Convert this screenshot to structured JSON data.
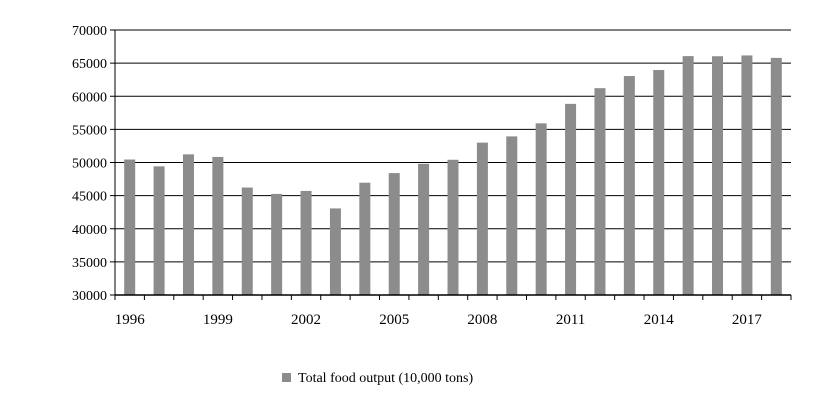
{
  "chart_data": {
    "type": "bar",
    "categories": [
      "1996",
      "1997",
      "1998",
      "1999",
      "2000",
      "2001",
      "2002",
      "2003",
      "2004",
      "2005",
      "2006",
      "2007",
      "2008",
      "2009",
      "2010",
      "2011",
      "2012",
      "2013",
      "2014",
      "2015",
      "2016",
      "2017",
      "2018"
    ],
    "series": [
      {
        "name": "Total food output (10,000 tons)",
        "values": [
          50450,
          49420,
          51230,
          50840,
          46220,
          45260,
          45710,
          43070,
          46950,
          48400,
          49800,
          50410,
          53000,
          53940,
          55910,
          58850,
          61220,
          63050,
          63960,
          66060,
          66040,
          66160,
          65790
        ],
        "color": "#8c8c8c"
      }
    ],
    "x_tick_labels": [
      "1996",
      "1999",
      "2002",
      "2005",
      "2008",
      "2011",
      "2014",
      "2017"
    ],
    "y_tick_labels": [
      "30000",
      "35000",
      "40000",
      "45000",
      "50000",
      "55000",
      "60000",
      "65000",
      "70000"
    ],
    "ylim": [
      30000,
      70000
    ],
    "grid": "horizontal",
    "legend_position": "bottom-center"
  }
}
